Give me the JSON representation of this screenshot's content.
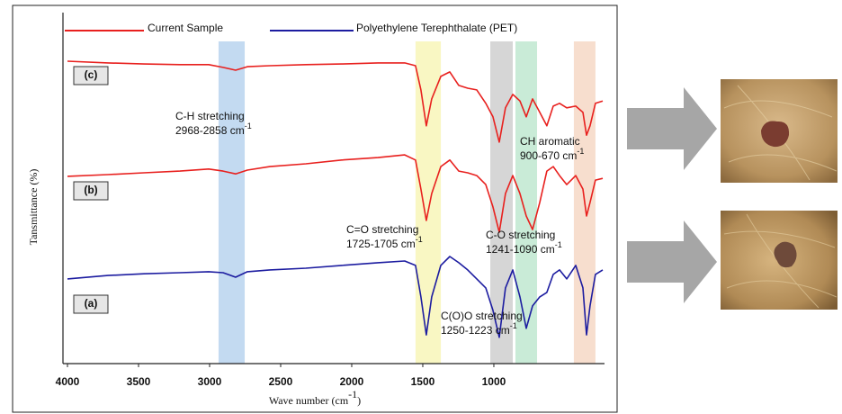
{
  "chart_data": {
    "type": "line",
    "y_label": "Tansmittance (%)",
    "x_label": {
      "text": "Wave number (cm",
      "sup": "-1",
      "end": ")"
    },
    "legend": [
      {
        "name": "Current Sample",
        "color": "#e8201e"
      },
      {
        "name": "Polyethylene Terephthalate (PET)",
        "color": "#1c1ca0"
      }
    ],
    "xlim": [
      4000,
      234
    ],
    "xticks": [
      4000,
      3500,
      3000,
      2500,
      2000,
      1500,
      1000
    ],
    "ylim": [
      0,
      100
    ],
    "x": [
      4000,
      3715,
      3462,
      3209,
      3006,
      2905,
      2817,
      2734,
      2576,
      2323,
      2070,
      1816,
      1627,
      1551,
      1513,
      1475,
      1437,
      1373,
      1310,
      1247,
      1184,
      1120,
      1057,
      1006,
      962,
      918,
      867,
      816,
      772,
      728,
      677,
      627,
      582,
      538,
      487,
      424,
      373,
      348,
      323,
      285,
      234
    ],
    "series": [
      {
        "name": "(c)",
        "color": "#e8201e",
        "values": [
          87.5,
          87.0,
          86.7,
          86.5,
          86.5,
          85.7,
          84.9,
          85.9,
          86.2,
          86.5,
          86.7,
          87.0,
          87.0,
          86.2,
          79.2,
          68.8,
          76.6,
          83.1,
          84.4,
          80.5,
          79.7,
          79.2,
          75.3,
          71.4,
          64.1,
          74.0,
          77.9,
          76.0,
          71.4,
          76.6,
          72.7,
          68.8,
          74.5,
          75.3,
          74.0,
          74.5,
          72.7,
          66.1,
          68.8,
          75.3,
          76.0
        ]
      },
      {
        "name": "(b)",
        "color": "#e8201e",
        "values": [
          54.2,
          54.7,
          55.2,
          55.7,
          56.3,
          55.7,
          54.9,
          56.0,
          57.0,
          57.8,
          58.9,
          59.6,
          60.4,
          58.9,
          50.5,
          41.4,
          49.2,
          57.0,
          58.9,
          55.7,
          55.2,
          54.4,
          51.8,
          45.3,
          38.0,
          49.2,
          54.4,
          49.2,
          42.7,
          38.8,
          46.6,
          55.7,
          57.0,
          54.4,
          51.8,
          54.4,
          50.5,
          42.7,
          46.6,
          53.1,
          53.6
        ]
      },
      {
        "name": "(a)",
        "color": "#1c1ca0",
        "values": [
          24.5,
          25.5,
          26.0,
          26.3,
          26.6,
          26.3,
          25.0,
          26.6,
          27.1,
          27.6,
          28.4,
          29.2,
          29.7,
          28.4,
          19.3,
          8.3,
          19.3,
          28.4,
          31.0,
          29.2,
          27.1,
          24.5,
          21.9,
          15.4,
          7.6,
          21.9,
          27.1,
          19.3,
          10.2,
          16.7,
          19.3,
          20.6,
          25.8,
          27.1,
          24.5,
          28.4,
          21.9,
          8.3,
          16.7,
          25.8,
          27.1
        ]
      }
    ],
    "bands": [
      {
        "from": 2937,
        "to": 2753,
        "color": "#b9d3ee"
      },
      {
        "from": 1551,
        "to": 1373,
        "color": "#f8f6b8"
      },
      {
        "from": 1025,
        "to": 867,
        "color": "#cfcfcf"
      },
      {
        "from": 848,
        "to": 696,
        "color": "#bfe8d0"
      },
      {
        "from": 437,
        "to": 285,
        "color": "#f6d8c6"
      }
    ],
    "annotations": [
      {
        "label": "C-H stretching",
        "range": "2968-2858 cm",
        "sup": "-1"
      },
      {
        "label": "C=O stretching",
        "range": "1725-1705 cm",
        "sup": "-1"
      },
      {
        "label": "C-O stretching",
        "range": "1241-1090 cm",
        "sup": "-1"
      },
      {
        "label": "CH aromatic",
        "range": "900-670 cm",
        "sup": "-1"
      },
      {
        "label": "C(O)O stretching",
        "range": "1250-1223 cm",
        "sup": "-1"
      }
    ]
  }
}
